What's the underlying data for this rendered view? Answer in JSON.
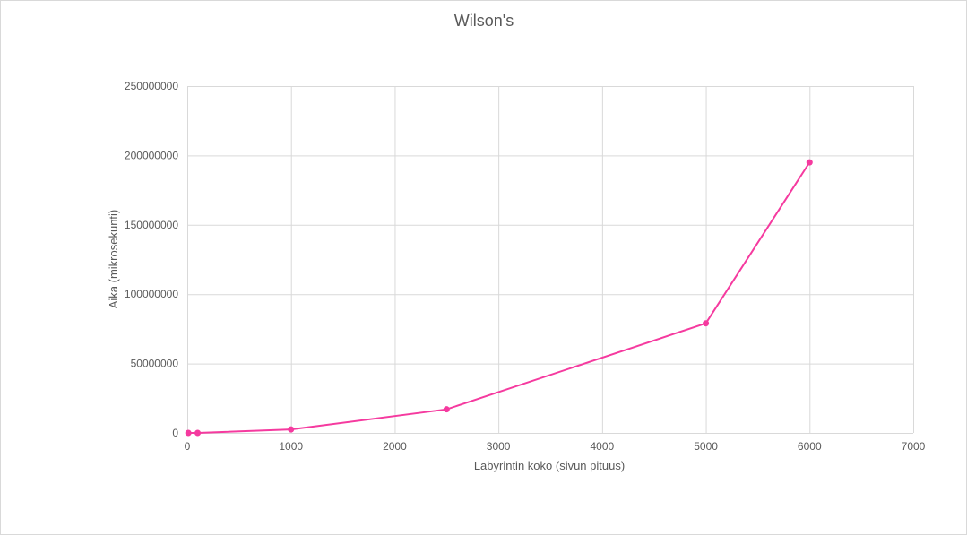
{
  "chart_data": {
    "type": "line",
    "title": "Wilson's",
    "xlabel": "Labyrintin koko (sivun pituus)",
    "ylabel": "Aika (mikrosekunti)",
    "xlim": [
      0,
      7000
    ],
    "ylim": [
      0,
      250000000
    ],
    "x_ticks": [
      0,
      1000,
      2000,
      3000,
      4000,
      5000,
      6000,
      7000
    ],
    "y_ticks": [
      0,
      50000000,
      100000000,
      150000000,
      200000000,
      250000000
    ],
    "grid": true,
    "legend": "none",
    "series": [
      {
        "color": "#f53a9f",
        "markers": true,
        "points": [
          {
            "x": 10,
            "y": 200
          },
          {
            "x": 100,
            "y": 20000
          },
          {
            "x": 1000,
            "y": 2500000
          },
          {
            "x": 2500,
            "y": 17000000
          },
          {
            "x": 5000,
            "y": 79000000
          },
          {
            "x": 6000,
            "y": 195000000
          }
        ]
      }
    ]
  }
}
